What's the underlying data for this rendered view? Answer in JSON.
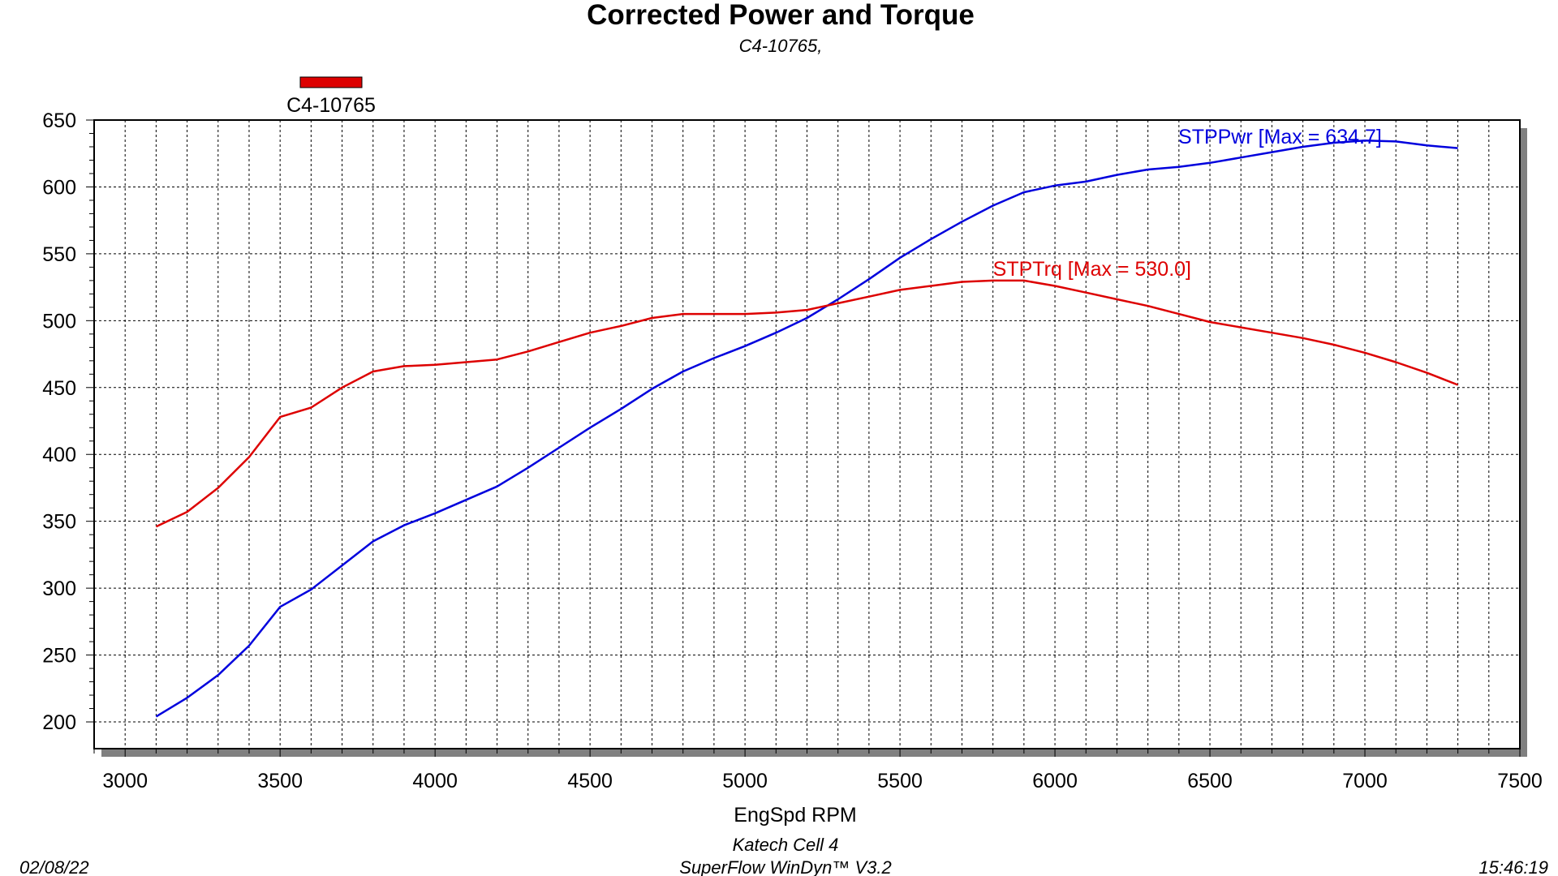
{
  "chart_data": {
    "type": "line",
    "title": "Corrected Power and Torque",
    "subtitle": "C4-10765,",
    "xlabel": "EngSpd RPM",
    "ylabel": "",
    "xlim": [
      2900,
      7500
    ],
    "ylim": [
      180,
      650
    ],
    "x_ticks": [
      3000,
      3500,
      4000,
      4500,
      5000,
      5500,
      6000,
      6500,
      7000,
      7500
    ],
    "y_ticks": [
      200,
      250,
      300,
      350,
      400,
      450,
      500,
      550,
      600,
      650
    ],
    "grid": true,
    "legend": {
      "label": "C4-10765",
      "color": "#dd0000",
      "placement": "top-left"
    },
    "series": [
      {
        "name": "STPPwr",
        "color": "#0000dd",
        "annotation": "STPPwr [Max = 634.7]",
        "points": [
          [
            3100,
            204
          ],
          [
            3200,
            218
          ],
          [
            3300,
            235
          ],
          [
            3400,
            257
          ],
          [
            3500,
            286
          ],
          [
            3600,
            299
          ],
          [
            3700,
            317
          ],
          [
            3800,
            335
          ],
          [
            3900,
            347
          ],
          [
            4000,
            356
          ],
          [
            4100,
            366
          ],
          [
            4200,
            376
          ],
          [
            4300,
            390
          ],
          [
            4400,
            405
          ],
          [
            4500,
            420
          ],
          [
            4600,
            434
          ],
          [
            4700,
            449
          ],
          [
            4800,
            462
          ],
          [
            4900,
            472
          ],
          [
            5000,
            481
          ],
          [
            5100,
            491
          ],
          [
            5200,
            502
          ],
          [
            5300,
            516
          ],
          [
            5400,
            531
          ],
          [
            5500,
            547
          ],
          [
            5600,
            561
          ],
          [
            5700,
            574
          ],
          [
            5800,
            586
          ],
          [
            5900,
            596
          ],
          [
            6000,
            601
          ],
          [
            6100,
            604
          ],
          [
            6200,
            609
          ],
          [
            6300,
            613
          ],
          [
            6400,
            615
          ],
          [
            6500,
            618
          ],
          [
            6600,
            622
          ],
          [
            6700,
            626
          ],
          [
            6800,
            630
          ],
          [
            6900,
            633
          ],
          [
            7000,
            634.7
          ],
          [
            7100,
            634
          ],
          [
            7200,
            631
          ],
          [
            7300,
            629
          ]
        ]
      },
      {
        "name": "STPTrq",
        "color": "#dd0000",
        "annotation": "STPTrq [Max = 530.0]",
        "points": [
          [
            3100,
            346
          ],
          [
            3200,
            357
          ],
          [
            3300,
            375
          ],
          [
            3400,
            398
          ],
          [
            3500,
            428
          ],
          [
            3600,
            435
          ],
          [
            3700,
            450
          ],
          [
            3800,
            462
          ],
          [
            3900,
            466
          ],
          [
            4000,
            467
          ],
          [
            4100,
            469
          ],
          [
            4200,
            471
          ],
          [
            4300,
            477
          ],
          [
            4400,
            484
          ],
          [
            4500,
            491
          ],
          [
            4600,
            496
          ],
          [
            4700,
            502
          ],
          [
            4800,
            505
          ],
          [
            4900,
            505
          ],
          [
            5000,
            505
          ],
          [
            5100,
            506
          ],
          [
            5200,
            508
          ],
          [
            5300,
            513
          ],
          [
            5400,
            518
          ],
          [
            5500,
            523
          ],
          [
            5600,
            526
          ],
          [
            5700,
            529
          ],
          [
            5800,
            530
          ],
          [
            5900,
            530.0
          ],
          [
            6000,
            526
          ],
          [
            6100,
            521
          ],
          [
            6200,
            516
          ],
          [
            6300,
            511
          ],
          [
            6400,
            505
          ],
          [
            6500,
            499
          ],
          [
            6600,
            495
          ],
          [
            6700,
            491
          ],
          [
            6800,
            487
          ],
          [
            6900,
            482
          ],
          [
            7000,
            476
          ],
          [
            7100,
            469
          ],
          [
            7200,
            461
          ],
          [
            7300,
            452
          ]
        ]
      }
    ]
  },
  "footer": {
    "center_line1": "Katech Cell 4",
    "center_line2": "SuperFlow WinDyn™  V3.2",
    "date": "02/08/22",
    "time": "15:46:19"
  }
}
